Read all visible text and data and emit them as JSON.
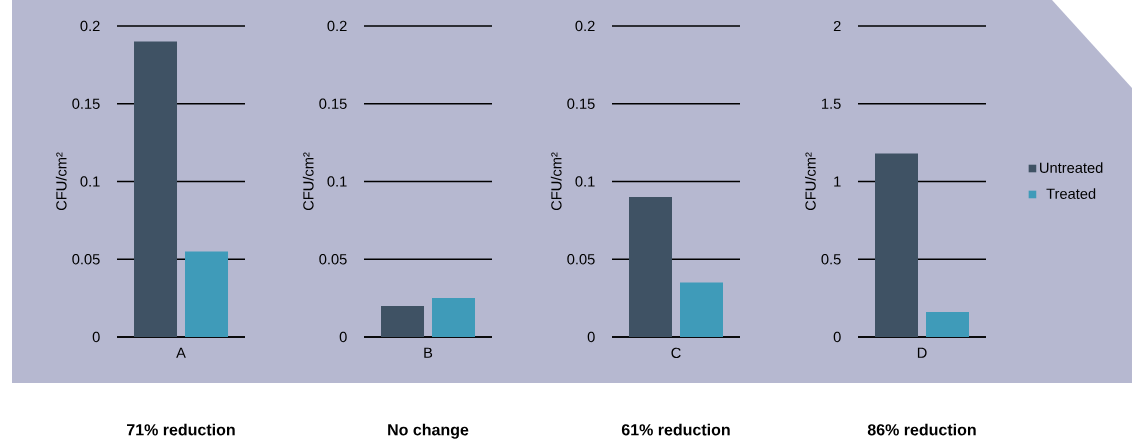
{
  "chart_data": [
    {
      "type": "bar",
      "categories": [
        "A"
      ],
      "ylabel": "CFU/cm²",
      "ylim": [
        0,
        0.2
      ],
      "yticks": [
        0,
        0.05,
        0.1,
        0.15,
        0.2
      ],
      "grid": "y",
      "legend": false,
      "annotations": [
        "**71% reduction**"
      ],
      "series": [
        {
          "color": "#3f5264",
          "values": [
            0.19
          ]
        },
        {
          "color": "#3f9bb9",
          "values": [
            0.055
          ]
        }
      ]
    },
    {
      "type": "bar",
      "categories": [
        "B"
      ],
      "ylabel": "CFU/cm²",
      "ylim": [
        0,
        0.2
      ],
      "yticks": [
        0,
        0.05,
        0.1,
        0.15,
        0.2
      ],
      "grid": "y",
      "legend": false,
      "annotations": [
        "**No change**"
      ],
      "series": [
        {
          "color": "#3f5264",
          "values": [
            0.02
          ]
        },
        {
          "color": "#3f9bb9",
          "values": [
            0.025
          ]
        }
      ]
    },
    {
      "type": "bar",
      "categories": [
        "C"
      ],
      "ylabel": "CFU/cm²",
      "ylim": [
        0,
        0.2
      ],
      "yticks": [
        0,
        0.05,
        0.1,
        0.15,
        0.2
      ],
      "grid": "y",
      "legend": false,
      "annotations": [
        "**61% reduction**"
      ],
      "series": [
        {
          "color": "#3f5264",
          "values": [
            0.09
          ]
        },
        {
          "color": "#3f9bb9",
          "values": [
            0.035
          ]
        }
      ]
    },
    {
      "type": "bar",
      "categories": [
        "D"
      ],
      "ylabel": "CFU/cm²",
      "ylim": [
        0,
        2
      ],
      "yticks": [
        0,
        0.5,
        1,
        1.5,
        2
      ],
      "grid": "y",
      "legend": "right",
      "annotations": [
        "**86% reduction**"
      ],
      "series": [
        {
          "name": "Untreated",
          "color": "#3f5264",
          "values": [
            1.18
          ]
        },
        {
          "name": "Treated",
          "color": "#3f9bb9",
          "values": [
            0.16
          ]
        }
      ]
    }
  ]
}
